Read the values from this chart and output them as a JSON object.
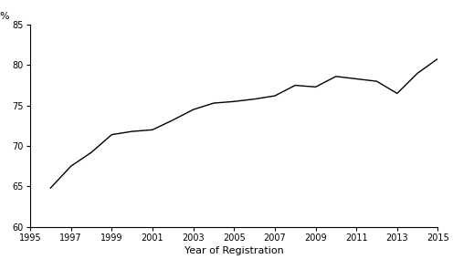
{
  "years": [
    1996,
    1997,
    1998,
    1999,
    2000,
    2001,
    2002,
    2003,
    2004,
    2005,
    2006,
    2007,
    2008,
    2009,
    2010,
    2011,
    2012,
    2013,
    2014,
    2015
  ],
  "values": [
    64.8,
    67.5,
    69.2,
    71.4,
    71.8,
    72.0,
    73.2,
    74.5,
    75.3,
    75.5,
    75.8,
    76.2,
    77.5,
    77.3,
    78.6,
    78.3,
    78.0,
    76.5,
    79.0,
    80.8
  ],
  "xlim": [
    1995,
    2015
  ],
  "ylim": [
    60,
    85
  ],
  "yticks": [
    60,
    65,
    70,
    75,
    80,
    85
  ],
  "xticks": [
    1995,
    1997,
    1999,
    2001,
    2003,
    2005,
    2007,
    2009,
    2011,
    2013,
    2015
  ],
  "ylabel": "%",
  "xlabel": "Year of Registration",
  "line_color": "#000000",
  "line_width": 1.0,
  "background_color": "#ffffff",
  "tick_fontsize": 7,
  "label_fontsize": 8
}
